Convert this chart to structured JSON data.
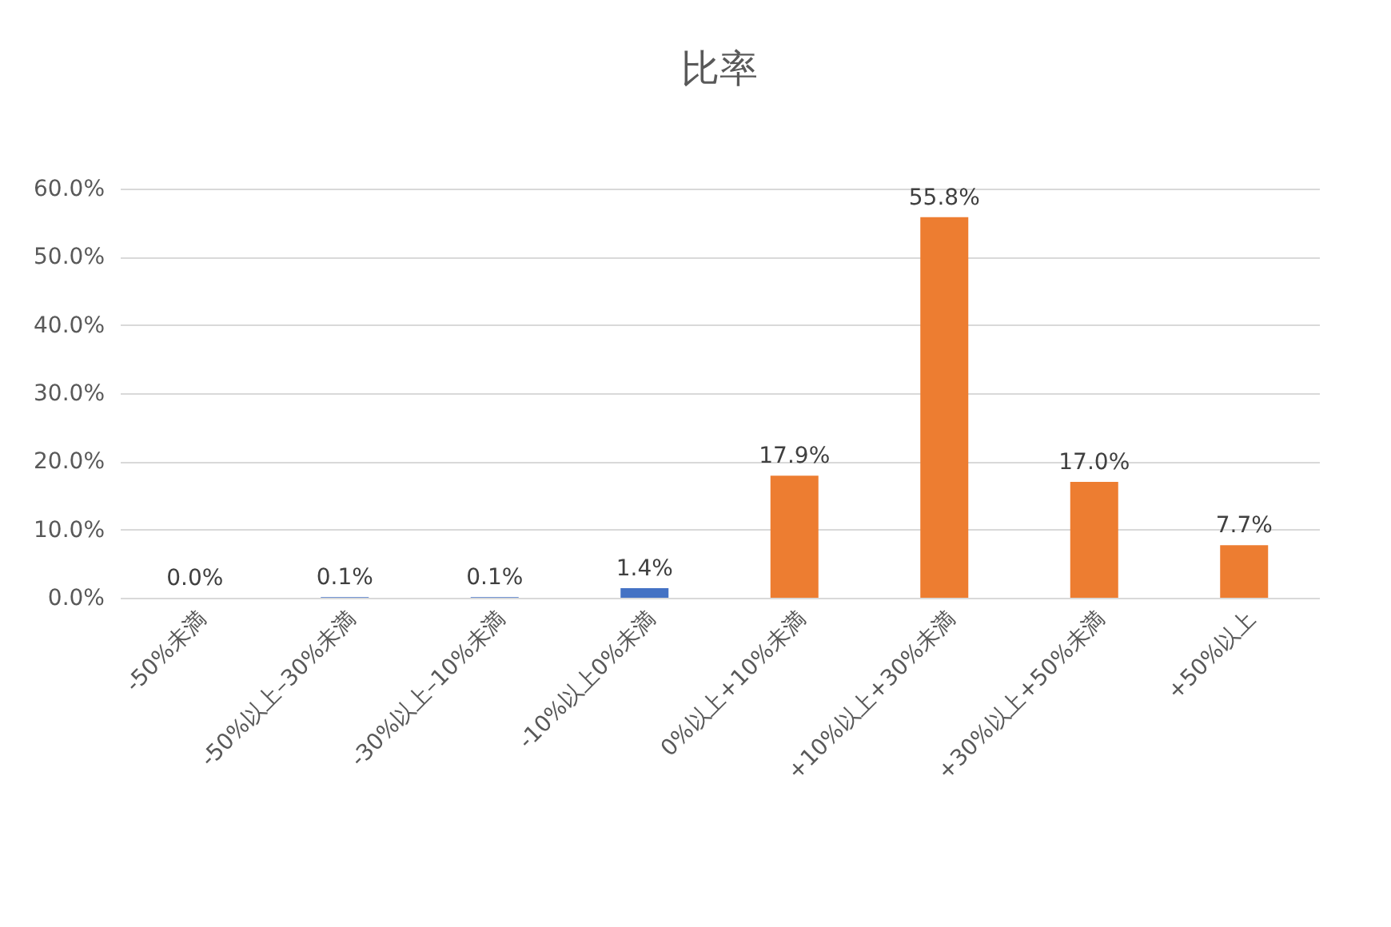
{
  "chart_data": {
    "type": "bar",
    "title": "比率",
    "categories": [
      "-50%未満",
      "-50%以上–30%未満",
      "-30%以上–10%未満",
      "-10%以上0%未満",
      "0%以上+10%未満",
      "+10%以上+30%未満",
      "+30%以上+50%未満",
      "+50%以上"
    ],
    "values": [
      0.0,
      0.1,
      0.1,
      1.4,
      17.9,
      55.8,
      17.0,
      7.7
    ],
    "colors": [
      "#4472c4",
      "#4472c4",
      "#4472c4",
      "#4472c4",
      "#ed7d31",
      "#ed7d31",
      "#ed7d31",
      "#ed7d31"
    ],
    "value_labels": [
      "0.0%",
      "0.1%",
      "0.1%",
      "1.4%",
      "17.9%",
      "55.8%",
      "17.0%",
      "7.7%"
    ],
    "ylim": [
      0,
      60
    ],
    "yticks": [
      {
        "value": 0,
        "label": "0.0%"
      },
      {
        "value": 10,
        "label": "10.0%"
      },
      {
        "value": 20,
        "label": "20.0%"
      },
      {
        "value": 30,
        "label": "30.0%"
      },
      {
        "value": 40,
        "label": "40.0%"
      },
      {
        "value": 50,
        "label": "50.0%"
      },
      {
        "value": 60,
        "label": "60.0%"
      }
    ],
    "grid": "y"
  }
}
